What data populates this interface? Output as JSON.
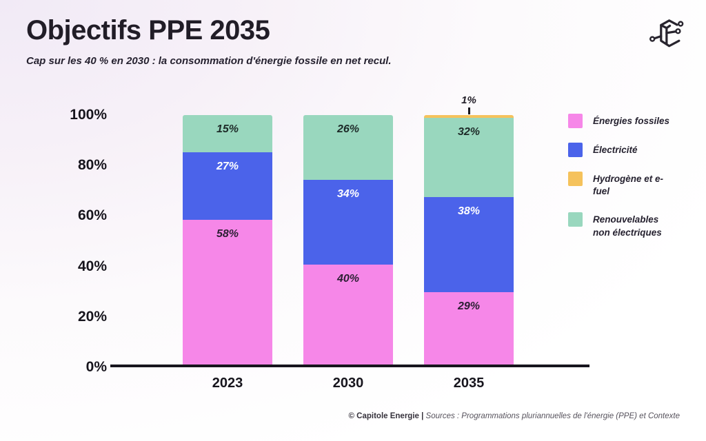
{
  "header": {
    "title": "Objectifs PPE 2035",
    "subtitle": "Cap sur les 40 % en 2030 : la consommation d'énergie fossile en net recul.",
    "logo_name": "capitole-energie-logo"
  },
  "chart_data": {
    "type": "bar",
    "stacked": true,
    "title": "Objectifs PPE 2035",
    "categories": [
      "2023",
      "2030",
      "2035"
    ],
    "series": [
      {
        "name": "Énergies fossiles",
        "color": "#F687E8",
        "label_color": "#2b1f33",
        "values": [
          58,
          40,
          29
        ]
      },
      {
        "name": "Électricité",
        "color": "#4B63EA",
        "label_color": "#ffffff",
        "values": [
          27,
          34,
          38
        ]
      },
      {
        "name": "Hydrogène et e-fuel",
        "color": "#F5C25C",
        "label_color": "#211d27",
        "values": [
          0,
          0,
          1
        ]
      },
      {
        "name": "Renouvelables non électriques",
        "color": "#99D7BE",
        "label_color": "#1d2a28",
        "values": [
          15,
          26,
          32
        ]
      }
    ],
    "stack_order_bottom_to_top": [
      "Énergies fossiles",
      "Électricité",
      "Renouvelables non électriques",
      "Hydrogène et e-fuel"
    ],
    "data_labels": {
      "2023": [
        "58%",
        "27%",
        "15%"
      ],
      "2030": [
        "40%",
        "34%",
        "26%"
      ],
      "2035": [
        "29%",
        "38%",
        "32%",
        "1%"
      ]
    },
    "y_ticks": [
      "100%",
      "80%",
      "60%",
      "40%",
      "20%",
      "0%"
    ],
    "ylim": [
      0,
      100
    ],
    "grid": false,
    "legend_position": "right",
    "axis_color": "#17151d"
  },
  "legend": {
    "items": [
      {
        "label": "Énergies fossiles",
        "color": "#F687E8"
      },
      {
        "label": "Électricité",
        "color": "#4B63EA"
      },
      {
        "label": "Hydrogène et e-fuel",
        "color": "#F5C25C"
      },
      {
        "label": "Renouvelables non électriques",
        "color": "#99D7BE"
      }
    ]
  },
  "footer": {
    "copyright": "© Capitole Energie |",
    "sources": " Sources : Programmations pluriannuelles de l'énergie (PPE) et Contexte"
  }
}
